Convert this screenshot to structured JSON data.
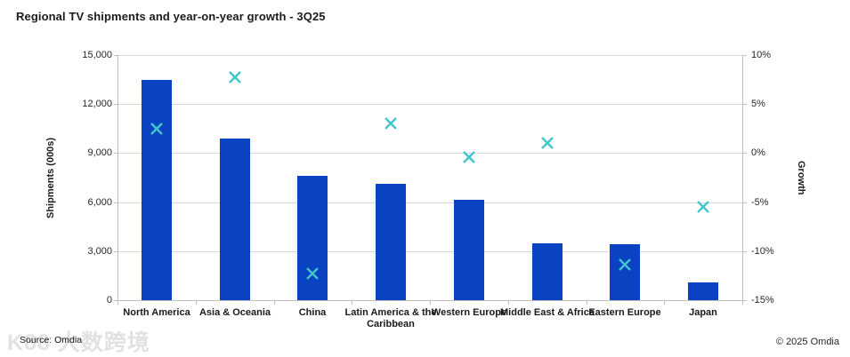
{
  "title": "Regional TV shipments and year-on-year growth - 3Q25",
  "footer": {
    "source": "Source: Omdia",
    "copyright": "© 2025 Omdia",
    "watermark": "K88 大数跨境"
  },
  "colors": {
    "bar": "#0a42c2",
    "marker": "#41c6cb",
    "gridline": "#d9d9d9",
    "axis_line": "#bfbfbf",
    "title_text": "#1c1c1c"
  },
  "chart_data": {
    "type": "combo (bar + scatter-x markers)",
    "title": "Regional TV shipments and year-on-year growth - 3Q25",
    "categories": [
      "North America",
      "Asia & Oceania",
      "China",
      "Latin America & the Caribbean",
      "Western Europe",
      "Middle East & Africa",
      "Eastern Europe",
      "Japan"
    ],
    "series": [
      {
        "name": "Shipments (000s)",
        "type": "bar",
        "axis": "left",
        "values": [
          13500,
          9900,
          7600,
          7100,
          6150,
          3500,
          3450,
          1100
        ]
      },
      {
        "name": "Growth",
        "type": "scatter_x_marker",
        "axis": "right",
        "values_pct": [
          2.5,
          7.7,
          -12.3,
          3.0,
          -0.4,
          1.0,
          -11.4,
          -5.5
        ]
      }
    ],
    "left_axis": {
      "label": "Shipments (000s)",
      "min": 0,
      "max": 15000,
      "step": 3000,
      "tick_labels": [
        "0",
        "3,000",
        "6,000",
        "9,000",
        "12,000",
        "15,000"
      ]
    },
    "right_axis": {
      "label": "Growth",
      "min": -15,
      "max": 10,
      "step": 5,
      "tick_labels": [
        "-15%",
        "-10%",
        "-5%",
        "0%",
        "5%",
        "10%"
      ]
    },
    "grid": "horizontal only",
    "legend": "none"
  }
}
